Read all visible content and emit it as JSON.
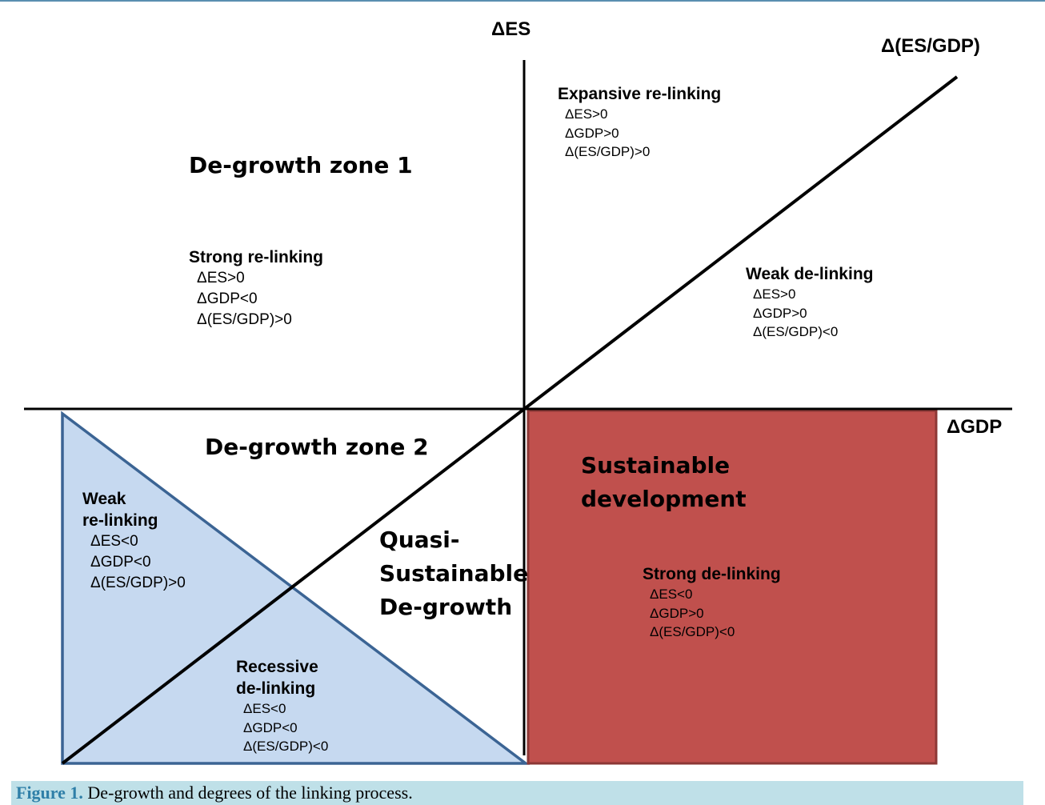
{
  "axes": {
    "y_label": "ΔES",
    "x_label": "ΔGDP",
    "diagonal_label": "Δ(ES/GDP)"
  },
  "zones": {
    "degrowth_1": "De-growth zone 1",
    "degrowth_2": "De-growth zone 2",
    "quasi": [
      "Quasi-",
      "Sustainable",
      "De-growth"
    ],
    "sustainable": [
      "Sustainable",
      "development"
    ]
  },
  "regions": {
    "expansive_relinking": {
      "title": [
        "Expansive re-linking"
      ],
      "conditions": [
        "ΔES>0",
        "ΔGDP>0",
        "Δ(ES/GDP)>0"
      ]
    },
    "strong_relinking": {
      "title": [
        "Strong re-linking"
      ],
      "conditions": [
        "ΔES>0",
        "ΔGDP<0",
        "Δ(ES/GDP)>0"
      ]
    },
    "weak_delinking": {
      "title": [
        "Weak de-linking"
      ],
      "conditions": [
        "ΔES>0",
        "ΔGDP>0",
        "Δ(ES/GDP)<0"
      ]
    },
    "weak_relinking": {
      "title": [
        "Weak",
        "re-linking"
      ],
      "conditions": [
        "ΔES<0",
        "ΔGDP<0",
        "Δ(ES/GDP)>0"
      ]
    },
    "recessive_delinking": {
      "title": [
        "Recessive",
        "de-linking"
      ],
      "conditions": [
        "ΔES<0",
        "ΔGDP<0",
        "Δ(ES/GDP)<0"
      ]
    },
    "strong_delinking": {
      "title": [
        "Strong de-linking"
      ],
      "conditions": [
        "ΔES<0",
        "ΔGDP>0",
        "Δ(ES/GDP)<0"
      ]
    }
  },
  "colors": {
    "triangle_fill": "#c6d9f0",
    "triangle_stroke": "#3b6494",
    "rect_fill": "#c0504d",
    "rect_stroke": "#8c3836",
    "caption_bg": "#bfe0e8",
    "caption_label": "#2f7fa8"
  },
  "caption": {
    "label": "Figure 1.",
    "text": " De-growth and degrees of the linking process."
  }
}
